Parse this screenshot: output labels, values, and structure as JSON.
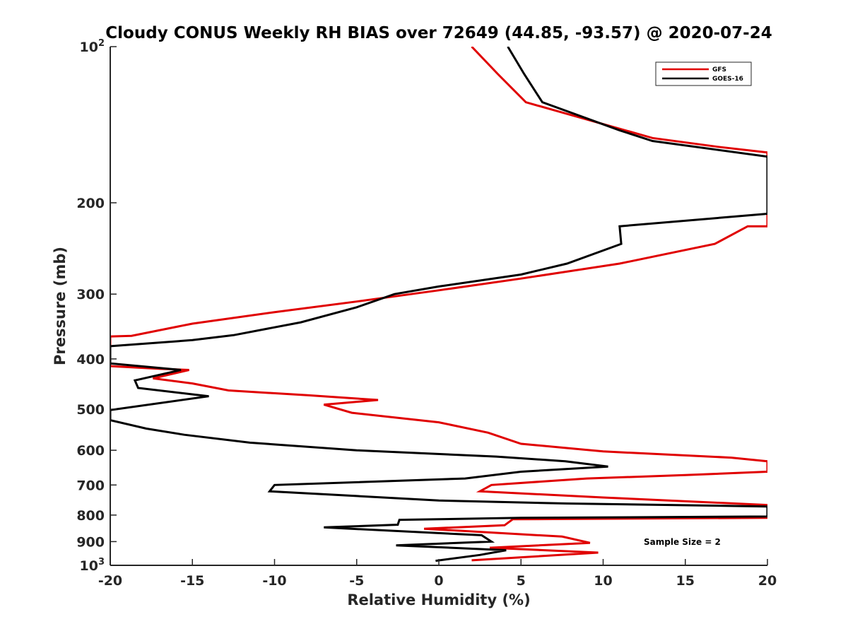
{
  "chart_data": {
    "type": "line",
    "title": "Cloudy CONUS Weekly RH BIAS over 72649 (44.85, -93.57) @ 2020-07-24",
    "xlabel": "Relative Humidity (%)",
    "ylabel": "Pressure (mb)",
    "xlim": [
      -20,
      20
    ],
    "ylim": [
      100,
      1000
    ],
    "yscale": "log",
    "y_reversed": true,
    "x_ticks": [
      -20,
      -15,
      -10,
      -5,
      0,
      5,
      10,
      15,
      20
    ],
    "x_tick_labels": [
      "-20",
      "-15",
      "-10",
      "-5",
      "0",
      "5",
      "10",
      "15",
      "20"
    ],
    "y_ticks": [
      100,
      200,
      300,
      400,
      500,
      600,
      700,
      800,
      900,
      1000
    ],
    "y_tick_labels": [
      {
        "base": "10",
        "sup": "2"
      },
      {
        "base": "200",
        "sup": ""
      },
      {
        "base": "300",
        "sup": ""
      },
      {
        "base": "400",
        "sup": ""
      },
      {
        "base": "500",
        "sup": ""
      },
      {
        "base": "600",
        "sup": ""
      },
      {
        "base": "700",
        "sup": ""
      },
      {
        "base": "800",
        "sup": ""
      },
      {
        "base": "900",
        "sup": ""
      },
      {
        "base": "10",
        "sup": "3"
      }
    ],
    "grid": false,
    "legend_position": "top-right",
    "annotation": "Sample Size = 2",
    "series": [
      {
        "name": "GFS",
        "color": "#e00000",
        "points": [
          [
            2.0,
            100
          ],
          [
            3.6,
            113
          ],
          [
            5.3,
            128
          ],
          [
            13.0,
            150
          ],
          [
            17.0,
            156
          ],
          [
            20.0,
            160
          ],
          [
            20.0,
            222
          ],
          [
            18.8,
            222
          ],
          [
            16.8,
            240
          ],
          [
            11.0,
            262
          ],
          [
            5.0,
            280
          ],
          [
            0.0,
            295
          ],
          [
            -5.0,
            310
          ],
          [
            -10.0,
            325
          ],
          [
            -15.0,
            342
          ],
          [
            -18.7,
            361
          ],
          [
            -20.0,
            362
          ],
          [
            -20.0,
            413
          ],
          [
            -17.0,
            418
          ],
          [
            -15.2,
            420
          ],
          [
            -17.4,
            436
          ],
          [
            -15.0,
            446
          ],
          [
            -12.8,
            460
          ],
          [
            -8.0,
            470
          ],
          [
            -3.7,
            480
          ],
          [
            -7.0,
            490
          ],
          [
            -5.3,
            508
          ],
          [
            0.0,
            530
          ],
          [
            3.0,
            555
          ],
          [
            5.0,
            583
          ],
          [
            10.0,
            603
          ],
          [
            17.8,
            620
          ],
          [
            20.0,
            630
          ],
          [
            20.0,
            660
          ],
          [
            15.0,
            670
          ],
          [
            9.0,
            680
          ],
          [
            3.2,
            700
          ],
          [
            2.5,
            720
          ],
          [
            10.0,
            740
          ],
          [
            20.0,
            765
          ],
          [
            20.0,
            810
          ],
          [
            4.5,
            815
          ],
          [
            4.0,
            837
          ],
          [
            -0.9,
            850
          ],
          [
            7.5,
            880
          ],
          [
            9.2,
            905
          ],
          [
            3.1,
            925
          ],
          [
            9.7,
            945
          ],
          [
            2.0,
            978
          ]
        ]
      },
      {
        "name": "GOES-16",
        "color": "#000000",
        "points": [
          [
            4.2,
            100
          ],
          [
            5.2,
            113
          ],
          [
            6.3,
            128
          ],
          [
            11.0,
            145
          ],
          [
            13.0,
            152
          ],
          [
            20.0,
            163
          ],
          [
            20.0,
            210
          ],
          [
            11.0,
            222
          ],
          [
            11.1,
            240
          ],
          [
            7.8,
            262
          ],
          [
            5.0,
            275
          ],
          [
            0.0,
            290
          ],
          [
            -2.7,
            300
          ],
          [
            -5.0,
            318
          ],
          [
            -8.4,
            340
          ],
          [
            -12.5,
            360
          ],
          [
            -15.0,
            368
          ],
          [
            -20.0,
            378
          ],
          [
            -20.0,
            408
          ],
          [
            -15.7,
            420
          ],
          [
            -18.5,
            440
          ],
          [
            -18.3,
            455
          ],
          [
            -14.0,
            472
          ],
          [
            -20.0,
            502
          ],
          [
            -20.0,
            525
          ],
          [
            -17.8,
            545
          ],
          [
            -15.5,
            560
          ],
          [
            -11.5,
            580
          ],
          [
            -5.0,
            600
          ],
          [
            3.5,
            617
          ],
          [
            7.7,
            630
          ],
          [
            10.3,
            645
          ],
          [
            5.0,
            660
          ],
          [
            1.6,
            680
          ],
          [
            -10.0,
            700
          ],
          [
            -10.3,
            720
          ],
          [
            -5.0,
            735
          ],
          [
            0.0,
            750
          ],
          [
            7.8,
            760
          ],
          [
            20.0,
            770
          ],
          [
            20.0,
            805
          ],
          [
            5.0,
            810
          ],
          [
            -2.4,
            817
          ],
          [
            -2.5,
            835
          ],
          [
            -7.0,
            845
          ],
          [
            2.6,
            875
          ],
          [
            3.2,
            900
          ],
          [
            -2.6,
            915
          ],
          [
            4.1,
            935
          ],
          [
            2.5,
            955
          ],
          [
            -0.2,
            980
          ]
        ]
      }
    ]
  }
}
